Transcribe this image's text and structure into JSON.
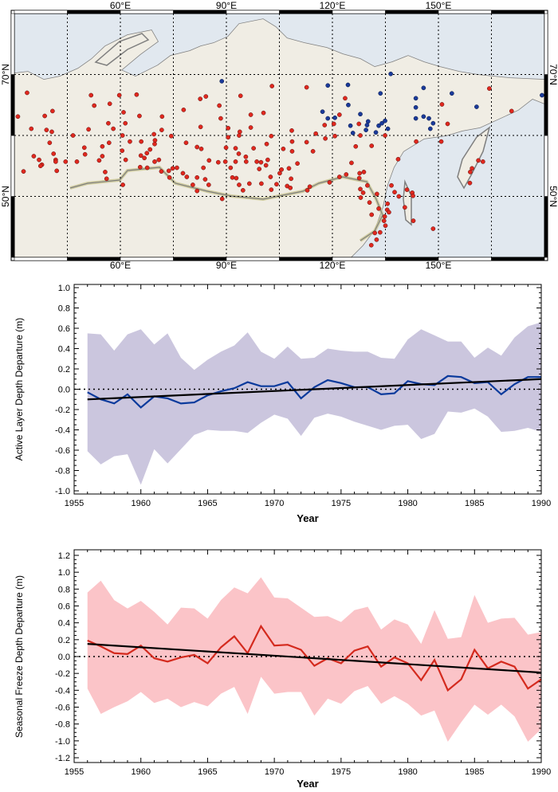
{
  "map": {
    "lon_range": [
      30,
      180
    ],
    "lat_range": [
      40,
      80
    ],
    "lon_grid": [
      45,
      60,
      75,
      90,
      105,
      120,
      135,
      150,
      165
    ],
    "lat_grid": [
      50,
      60,
      70
    ],
    "lon_labels": [
      {
        "lon": 60,
        "text": "60°E"
      },
      {
        "lon": 90,
        "text": "90°E"
      },
      {
        "lon": 120,
        "text": "120°E"
      },
      {
        "lon": 150,
        "text": "150°E"
      }
    ],
    "lat_labels": [
      {
        "lat": 70,
        "text": "70°N"
      },
      {
        "lat": 50,
        "text": "50°N"
      }
    ],
    "colors": {
      "ocean": "#e1e8ef",
      "land": "#f0ede4",
      "coast": "#7f7f7f",
      "coast_halo": "#a9b9d3",
      "border_halo": "#c9c48f",
      "red_station": "#e0281e",
      "blue_station": "#1a3a9a"
    },
    "red_stations": [
      [
        33.6,
        67.0
      ],
      [
        40.8,
        64.0
      ],
      [
        38.6,
        63.2
      ],
      [
        31.0,
        63.1
      ],
      [
        34.8,
        61.1
      ],
      [
        39.1,
        60.9
      ],
      [
        40.6,
        60.6
      ],
      [
        40.0,
        58.8
      ],
      [
        35.5,
        56.6
      ],
      [
        37.0,
        56.0
      ],
      [
        37.8,
        55.2
      ],
      [
        37.4,
        55.0
      ],
      [
        41.1,
        57.0
      ],
      [
        41.7,
        56.0
      ],
      [
        41.7,
        55.7
      ],
      [
        42.0,
        54.2
      ],
      [
        44.5,
        55.7
      ],
      [
        32.6,
        54.1
      ],
      [
        46.6,
        60.0
      ],
      [
        47.7,
        55.7
      ],
      [
        49.8,
        58.0
      ],
      [
        50.0,
        56.9
      ],
      [
        51.7,
        66.6
      ],
      [
        52.6,
        64.9
      ],
      [
        51.0,
        61.0
      ],
      [
        54.0,
        55.9
      ],
      [
        54.9,
        58.2
      ],
      [
        54.9,
        56.6
      ],
      [
        55.7,
        54.0
      ],
      [
        56.1,
        52.9
      ],
      [
        56.8,
        58.8
      ],
      [
        56.6,
        62.0
      ],
      [
        57.0,
        65.2
      ],
      [
        58.0,
        61.1
      ],
      [
        59.7,
        66.6
      ],
      [
        60.9,
        63.8
      ],
      [
        61.4,
        62.0
      ],
      [
        60.6,
        60.0
      ],
      [
        60.5,
        57.5
      ],
      [
        61.5,
        56.0
      ],
      [
        60.7,
        51.9
      ],
      [
        62.7,
        59.0
      ],
      [
        64.6,
        66.7
      ],
      [
        65.4,
        63.2
      ],
      [
        65.9,
        59.0
      ],
      [
        65.8,
        56.7
      ],
      [
        66.8,
        56.3
      ],
      [
        67.5,
        57.1
      ],
      [
        68.4,
        57.7
      ],
      [
        65.6,
        54.8
      ],
      [
        67.6,
        54.7
      ],
      [
        69.5,
        60.2
      ],
      [
        69.8,
        59.2
      ],
      [
        69.7,
        58.6
      ],
      [
        69.7,
        55.7
      ],
      [
        70.9,
        56.0
      ],
      [
        71.8,
        63.1
      ],
      [
        71.7,
        60.9
      ],
      [
        71.6,
        54.1
      ],
      [
        73.7,
        54.2
      ],
      [
        73.9,
        53.1
      ],
      [
        74.8,
        54.6
      ],
      [
        76.0,
        54.7
      ],
      [
        74.4,
        59.9
      ],
      [
        77.9,
        64.2
      ],
      [
        78.6,
        58.8
      ],
      [
        77.7,
        53.8
      ],
      [
        78.8,
        53.2
      ],
      [
        81.7,
        58.1
      ],
      [
        82.9,
        57.8
      ],
      [
        82.6,
        66.0
      ],
      [
        84.2,
        66.4
      ],
      [
        82.7,
        61.4
      ],
      [
        83.5,
        54.7
      ],
      [
        81.7,
        53.1
      ],
      [
        80.5,
        51.9
      ],
      [
        81.7,
        50.9
      ],
      [
        84.0,
        52.8
      ],
      [
        85.1,
        55.9
      ],
      [
        85.0,
        51.9
      ],
      [
        87.7,
        55.6
      ],
      [
        88.0,
        64.9
      ],
      [
        88.4,
        62.8
      ],
      [
        88.8,
        49.6
      ],
      [
        89.7,
        55.7
      ],
      [
        89.9,
        58.0
      ],
      [
        90.5,
        61.2
      ],
      [
        90.5,
        59.7
      ],
      [
        91.2,
        54.7
      ],
      [
        91.7,
        53.1
      ],
      [
        92.6,
        57.9
      ],
      [
        92.6,
        55.7
      ],
      [
        92.8,
        53.0
      ],
      [
        93.5,
        57.0
      ],
      [
        93.6,
        51.9
      ],
      [
        93.8,
        60.6
      ],
      [
        93.6,
        60.0
      ],
      [
        94.0,
        66.5
      ],
      [
        94.7,
        51.0
      ],
      [
        95.5,
        56.5
      ],
      [
        95.6,
        55.7
      ],
      [
        96.5,
        52.1
      ],
      [
        96.9,
        63.4
      ],
      [
        96.9,
        61.3
      ],
      [
        97.7,
        57.9
      ],
      [
        98.6,
        55.7
      ],
      [
        99.3,
        54.5
      ],
      [
        99.8,
        55.6
      ],
      [
        99.9,
        52.1
      ],
      [
        100.5,
        63.7
      ],
      [
        101.4,
        58.6
      ],
      [
        101.7,
        56.0
      ],
      [
        101.2,
        55.1
      ],
      [
        102.5,
        53.2
      ],
      [
        102.7,
        59.9
      ],
      [
        102.9,
        68.1
      ],
      [
        104.2,
        52.0
      ],
      [
        102.7,
        51.1
      ],
      [
        105.1,
        53.8
      ],
      [
        112.7,
        67.9
      ],
      [
        123.6,
        66.1
      ],
      [
        122.0,
        63.4
      ],
      [
        117.8,
        61.7
      ],
      [
        120.4,
        61.9
      ],
      [
        127.5,
        61.9
      ],
      [
        108.5,
        60.8
      ],
      [
        115.3,
        60.3
      ],
      [
        118.0,
        59.5
      ],
      [
        120.7,
        59.9
      ],
      [
        127.9,
        60.0
      ],
      [
        134.9,
        60.0
      ],
      [
        108.6,
        59.0
      ],
      [
        112.7,
        58.9
      ],
      [
        106.1,
        57.8
      ],
      [
        108.6,
        57.4
      ],
      [
        114.5,
        57.4
      ],
      [
        126.6,
        58.2
      ],
      [
        131.1,
        58.3
      ],
      [
        125.4,
        55.5
      ],
      [
        110.1,
        55.4
      ],
      [
        107.7,
        54.6
      ],
      [
        105.6,
        54.4
      ],
      [
        108.3,
        52.9
      ],
      [
        107.2,
        51.7
      ],
      [
        108.1,
        51.4
      ],
      [
        113.6,
        51.6
      ],
      [
        112.9,
        51.0
      ],
      [
        119.2,
        52.3
      ],
      [
        122.0,
        53.2
      ],
      [
        123.9,
        53.6
      ],
      [
        127.6,
        53.0
      ],
      [
        127.7,
        53.8
      ],
      [
        128.9,
        54.0
      ],
      [
        129.9,
        51.8
      ],
      [
        127.9,
        51.2
      ],
      [
        128.7,
        50.6
      ],
      [
        128.0,
        49.8
      ],
      [
        132.6,
        50.4
      ],
      [
        136.7,
        51.8
      ],
      [
        137.6,
        50.7
      ],
      [
        138.8,
        50.0
      ],
      [
        138.6,
        56.1
      ],
      [
        135.6,
        48.8
      ],
      [
        130.5,
        49.0
      ],
      [
        133.1,
        48.0
      ],
      [
        135.5,
        47.8
      ],
      [
        136.0,
        47.4
      ],
      [
        134.8,
        46.7
      ],
      [
        131.1,
        47.0
      ],
      [
        134.6,
        46.0
      ],
      [
        135.0,
        45.2
      ],
      [
        133.5,
        44.1
      ],
      [
        132.0,
        44.0
      ],
      [
        132.5,
        42.9
      ],
      [
        131.0,
        42.0
      ],
      [
        140.5,
        48.2
      ],
      [
        141.1,
        51.1
      ],
      [
        142.6,
        50.6
      ],
      [
        142.8,
        50.1
      ],
      [
        142.9,
        46.0
      ],
      [
        148.5,
        44.7
      ],
      [
        143.7,
        59.0
      ],
      [
        150.8,
        59.0
      ],
      [
        151.0,
        65.1
      ],
      [
        152.6,
        61.9
      ],
      [
        164.4,
        67.7
      ],
      [
        170.7,
        64.0
      ],
      [
        161.3,
        55.9
      ],
      [
        162.6,
        55.7
      ],
      [
        159.5,
        54.6
      ],
      [
        159.0,
        54.0
      ],
      [
        158.9,
        52.2
      ]
    ],
    "blue_stations": [
      [
        88.7,
        68.9
      ],
      [
        118.7,
        68.2
      ],
      [
        124.4,
        68.3
      ],
      [
        136.5,
        70.1
      ],
      [
        133.6,
        66.9
      ],
      [
        124.5,
        65.0
      ],
      [
        117.2,
        63.9
      ],
      [
        118.7,
        62.8
      ],
      [
        120.7,
        62.9
      ],
      [
        127.9,
        63.5
      ],
      [
        130.1,
        62.3
      ],
      [
        129.8,
        61.7
      ],
      [
        125.1,
        61.6
      ],
      [
        125.8,
        60.4
      ],
      [
        129.5,
        60.9
      ],
      [
        132.3,
        60.5
      ],
      [
        133.1,
        61.6
      ],
      [
        134.0,
        62.0
      ],
      [
        134.9,
        62.4
      ],
      [
        135.7,
        61.1
      ],
      [
        145.8,
        67.8
      ],
      [
        143.6,
        66.1
      ],
      [
        143.6,
        64.6
      ],
      [
        143.6,
        62.8
      ],
      [
        145.8,
        63.1
      ],
      [
        147.3,
        62.8
      ],
      [
        148.5,
        62.0
      ],
      [
        147.7,
        61.1
      ],
      [
        153.8,
        66.9
      ],
      [
        160.8,
        64.7
      ],
      [
        179.3,
        66.6
      ]
    ]
  },
  "chart_data": [
    {
      "type": "line",
      "xlabel": "Year",
      "ylabel": "Active Layer Depth Departure (m)",
      "xlim": [
        1955,
        1990
      ],
      "ylim": [
        -1.0,
        1.0
      ],
      "xticks": [
        1955,
        1960,
        1965,
        1970,
        1975,
        1980,
        1985,
        1990
      ],
      "yticks": [
        -1.0,
        -0.8,
        -0.6,
        -0.4,
        -0.2,
        0.0,
        0.2,
        0.4,
        0.6,
        0.8,
        1.0
      ],
      "ytick_labels": [
        "-1.0",
        "-0.8",
        "-0.6",
        "-0.4",
        "-0.2",
        "0.0",
        "0.2",
        "0.4",
        "0.6",
        "0.8",
        "1.0"
      ],
      "zero_line": "dotted",
      "colors": {
        "line": "#0a3a9c",
        "band": "#cbc6de",
        "trend": "#000000"
      },
      "x": [
        1956,
        1957,
        1958,
        1959,
        1960,
        1961,
        1962,
        1963,
        1964,
        1965,
        1966,
        1967,
        1968,
        1969,
        1970,
        1971,
        1972,
        1973,
        1974,
        1975,
        1976,
        1977,
        1978,
        1979,
        1980,
        1981,
        1982,
        1983,
        1984,
        1985,
        1986,
        1987,
        1988,
        1989,
        1990
      ],
      "mean": [
        -0.03,
        -0.1,
        -0.14,
        -0.05,
        -0.18,
        -0.07,
        -0.09,
        -0.14,
        -0.13,
        -0.06,
        -0.02,
        0.01,
        0.07,
        0.03,
        0.03,
        0.07,
        -0.09,
        0.02,
        0.09,
        0.06,
        0.02,
        0.02,
        -0.05,
        -0.04,
        0.08,
        0.05,
        0.04,
        0.13,
        0.12,
        0.06,
        0.07,
        -0.05,
        0.05,
        0.12,
        0.12
      ],
      "band_upper": [
        0.55,
        0.54,
        0.38,
        0.54,
        0.59,
        0.44,
        0.55,
        0.31,
        0.19,
        0.29,
        0.37,
        0.43,
        0.56,
        0.37,
        0.3,
        0.42,
        0.3,
        0.31,
        0.4,
        0.38,
        0.37,
        0.37,
        0.31,
        0.3,
        0.49,
        0.59,
        0.53,
        0.47,
        0.47,
        0.31,
        0.41,
        0.33,
        0.51,
        0.62,
        0.66
      ],
      "band_lower": [
        -0.61,
        -0.74,
        -0.66,
        -0.64,
        -0.94,
        -0.59,
        -0.73,
        -0.59,
        -0.45,
        -0.4,
        -0.41,
        -0.41,
        -0.43,
        -0.33,
        -0.25,
        -0.29,
        -0.46,
        -0.28,
        -0.24,
        -0.27,
        -0.32,
        -0.36,
        -0.4,
        -0.36,
        -0.35,
        -0.49,
        -0.44,
        -0.22,
        -0.23,
        -0.19,
        -0.27,
        -0.42,
        -0.41,
        -0.38,
        -0.42
      ],
      "trend": {
        "x": [
          1956,
          1990
        ],
        "y": [
          -0.1,
          0.1
        ]
      }
    },
    {
      "type": "line",
      "xlabel": "Year",
      "ylabel": "Seasonal Freeze Depth Departure (m)",
      "xlim": [
        1955,
        1990
      ],
      "ylim": [
        -1.2,
        1.2
      ],
      "xticks": [
        1955,
        1960,
        1965,
        1970,
        1975,
        1980,
        1985,
        1990
      ],
      "yticks": [
        -1.2,
        -1.0,
        -0.8,
        -0.6,
        -0.4,
        -0.2,
        0.0,
        0.2,
        0.4,
        0.6,
        0.8,
        1.0,
        1.2
      ],
      "ytick_labels": [
        "-1.2",
        "-1.0",
        "-0.8",
        "-0.6",
        "-0.4",
        "-0.2",
        "0.0",
        "0.2",
        "0.4",
        "0.6",
        "0.8",
        "1.0",
        "1.2"
      ],
      "zero_line": "dotted",
      "colors": {
        "line": "#d42a1e",
        "band": "#fbc4c8",
        "trend": "#000000"
      },
      "x": [
        1956,
        1957,
        1958,
        1959,
        1960,
        1961,
        1962,
        1963,
        1964,
        1965,
        1966,
        1967,
        1968,
        1969,
        1970,
        1971,
        1972,
        1973,
        1974,
        1975,
        1976,
        1977,
        1978,
        1979,
        1980,
        1981,
        1982,
        1983,
        1984,
        1985,
        1986,
        1987,
        1988,
        1989,
        1990
      ],
      "mean": [
        0.19,
        0.12,
        0.04,
        0.03,
        0.13,
        -0.02,
        -0.06,
        -0.01,
        0.02,
        -0.08,
        0.11,
        0.24,
        0.04,
        0.36,
        0.13,
        0.14,
        0.08,
        -0.11,
        -0.02,
        -0.08,
        0.07,
        0.12,
        -0.12,
        -0.01,
        -0.08,
        -0.28,
        -0.04,
        -0.4,
        -0.27,
        0.08,
        -0.14,
        -0.06,
        -0.12,
        -0.38,
        -0.27
      ],
      "band_upper": [
        0.76,
        0.9,
        0.67,
        0.57,
        0.66,
        0.53,
        0.38,
        0.58,
        0.57,
        0.45,
        0.67,
        0.82,
        0.75,
        0.94,
        0.7,
        0.69,
        0.58,
        0.47,
        0.48,
        0.41,
        0.55,
        0.59,
        0.32,
        0.44,
        0.38,
        0.15,
        0.55,
        0.21,
        0.23,
        0.73,
        0.4,
        0.45,
        0.46,
        0.26,
        0.29
      ],
      "band_lower": [
        -0.38,
        -0.68,
        -0.6,
        -0.53,
        -0.42,
        -0.55,
        -0.5,
        -0.6,
        -0.54,
        -0.59,
        -0.44,
        -0.36,
        -0.68,
        -0.24,
        -0.44,
        -0.42,
        -0.42,
        -0.7,
        -0.5,
        -0.56,
        -0.41,
        -0.35,
        -0.56,
        -0.47,
        -0.56,
        -0.7,
        -0.64,
        -1.01,
        -0.78,
        -0.57,
        -0.69,
        -0.57,
        -0.71,
        -1.01,
        -0.86
      ],
      "trend": {
        "x": [
          1956,
          1990
        ],
        "y": [
          0.15,
          -0.19
        ]
      }
    }
  ]
}
